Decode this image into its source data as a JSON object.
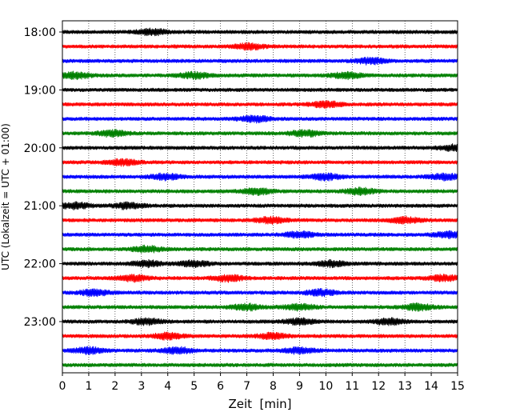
{
  "chart_data": {
    "type": "line",
    "title": "",
    "xlabel": "Zeit  [min]",
    "ylabel": "UTC (Lokalzeit = UTC + 01:00)",
    "xlim": [
      0,
      15
    ],
    "x_ticks": [
      "0",
      "1",
      "2",
      "3",
      "4",
      "5",
      "6",
      "7",
      "8",
      "9",
      "10",
      "11",
      "12",
      "13",
      "14",
      "15"
    ],
    "y_ticks": [
      "18:00",
      "19:00",
      "20:00",
      "21:00",
      "22:00",
      "23:00"
    ],
    "grid": "vertical-dotted",
    "trace_colors": [
      "#000000",
      "#ff0000",
      "#0000ff",
      "#008000"
    ],
    "rows": [
      {
        "start": "18:00",
        "color": "#000000",
        "bursts": [
          3.4
        ]
      },
      {
        "start": "18:15",
        "color": "#ff0000",
        "bursts": [
          7.1
        ]
      },
      {
        "start": "18:30",
        "color": "#0000ff",
        "bursts": [
          11.7
        ]
      },
      {
        "start": "18:45",
        "color": "#008000",
        "bursts": [
          0.5,
          5.0,
          10.8
        ]
      },
      {
        "start": "19:00",
        "color": "#000000",
        "bursts": []
      },
      {
        "start": "19:15",
        "color": "#ff0000",
        "bursts": [
          10.0
        ]
      },
      {
        "start": "19:30",
        "color": "#0000ff",
        "bursts": [
          7.3
        ]
      },
      {
        "start": "19:45",
        "color": "#008000",
        "bursts": [
          1.9,
          9.2
        ]
      },
      {
        "start": "20:00",
        "color": "#000000",
        "bursts": [
          14.9
        ]
      },
      {
        "start": "20:15",
        "color": "#ff0000",
        "bursts": [
          2.3
        ]
      },
      {
        "start": "20:30",
        "color": "#0000ff",
        "bursts": [
          3.9,
          10.0,
          14.5
        ]
      },
      {
        "start": "20:45",
        "color": "#008000",
        "bursts": [
          7.4,
          11.3
        ]
      },
      {
        "start": "21:00",
        "color": "#000000",
        "bursts": [
          0.5,
          2.5
        ]
      },
      {
        "start": "21:15",
        "color": "#ff0000",
        "bursts": [
          7.9,
          13.0
        ]
      },
      {
        "start": "21:30",
        "color": "#0000ff",
        "bursts": [
          9.0,
          14.7
        ]
      },
      {
        "start": "21:45",
        "color": "#008000",
        "bursts": [
          3.2
        ]
      },
      {
        "start": "22:00",
        "color": "#000000",
        "bursts": [
          3.2,
          5.0,
          10.2
        ]
      },
      {
        "start": "22:15",
        "color": "#ff0000",
        "bursts": [
          2.7,
          6.3,
          14.5
        ]
      },
      {
        "start": "22:30",
        "color": "#0000ff",
        "bursts": [
          1.2,
          9.8
        ]
      },
      {
        "start": "22:45",
        "color": "#008000",
        "bursts": [
          7.0,
          9.0,
          13.5
        ]
      },
      {
        "start": "23:00",
        "color": "#000000",
        "bursts": [
          3.2,
          9.0,
          12.4
        ]
      },
      {
        "start": "23:15",
        "color": "#ff0000",
        "bursts": [
          4.0,
          8.0
        ]
      },
      {
        "start": "23:30",
        "color": "#0000ff",
        "bursts": [
          1.0,
          4.4,
          9.0
        ]
      },
      {
        "start": "23:45",
        "color": "#008000",
        "bursts": []
      }
    ]
  }
}
